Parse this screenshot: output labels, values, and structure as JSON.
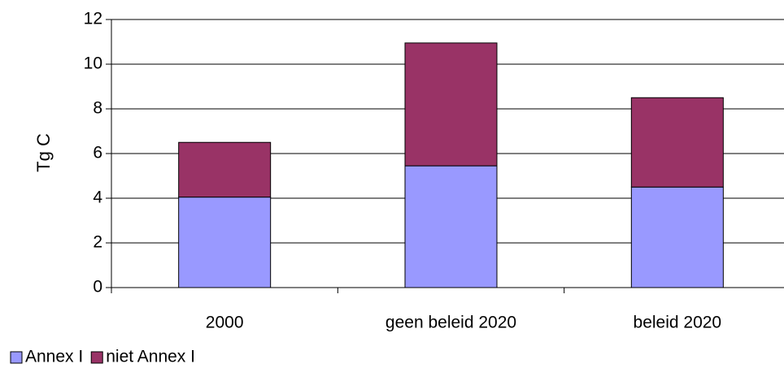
{
  "chart_data": {
    "type": "bar",
    "stacked": true,
    "title": "",
    "xlabel": "",
    "ylabel": "Tg C",
    "ylim": [
      0,
      12
    ],
    "yticks": [
      0,
      2,
      4,
      6,
      8,
      10,
      12
    ],
    "grid": true,
    "legend_position": "bottom-left",
    "categories": [
      "2000",
      "geen beleid 2020",
      "beleid 2020"
    ],
    "series": [
      {
        "name": "Annex I",
        "color": "#9999ff",
        "values": [
          4.05,
          5.45,
          4.5
        ]
      },
      {
        "name": "niet Annex I",
        "color": "#993366",
        "values": [
          2.45,
          5.5,
          4.0
        ]
      }
    ]
  }
}
